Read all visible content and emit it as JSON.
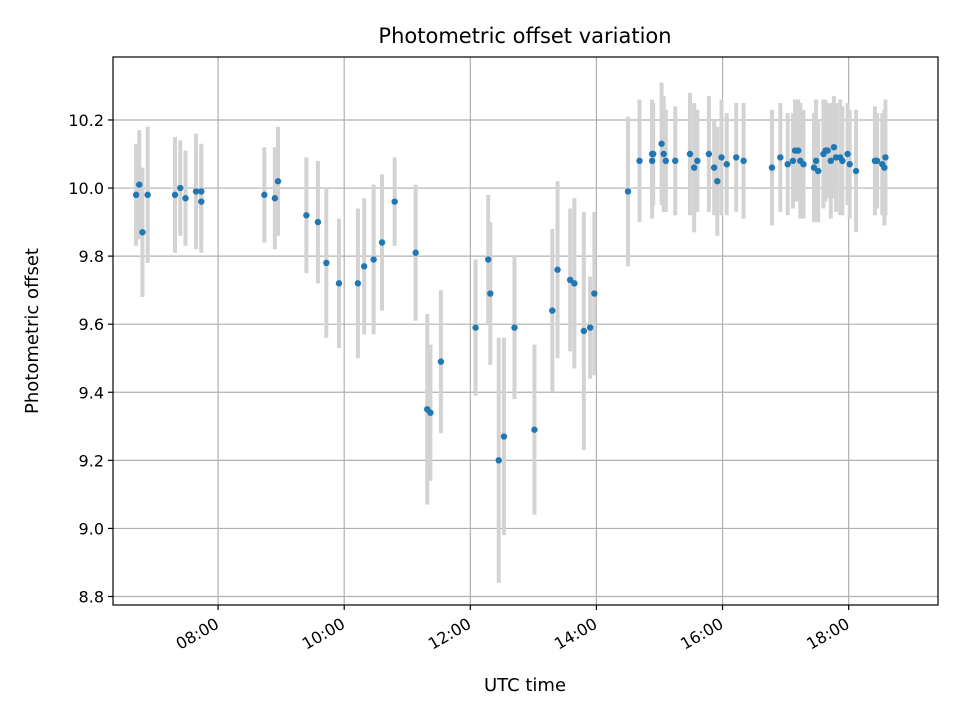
{
  "chart_data": {
    "type": "scatter",
    "title": "Photometric offset variation",
    "xlabel": "UTC time",
    "ylabel": "Photometric offset",
    "x_tick_labels": [
      "08:00",
      "10:00",
      "12:00",
      "14:00",
      "16:00",
      "18:00"
    ],
    "x_tick_hours": [
      8,
      10,
      12,
      14,
      16,
      18
    ],
    "y_ticks": [
      8.8,
      9.0,
      9.2,
      9.4,
      9.6,
      9.8,
      10.0,
      10.2
    ],
    "xlim": [
      "06:20",
      "19:25"
    ],
    "ylim": [
      8.775,
      10.385
    ],
    "grid": true,
    "marker_color": "#1f77b4",
    "errorbar_color": "#d3d3d3",
    "series": [
      {
        "x": [
          "06:42",
          "06:45",
          "06:48",
          "06:53",
          "07:19",
          "07:24",
          "07:29",
          "07:39",
          "07:44",
          "07:44",
          "08:44",
          "08:54",
          "08:57",
          "09:24",
          "09:35",
          "09:43",
          "09:55",
          "10:13",
          "10:19",
          "10:28",
          "10:36",
          "10:48",
          "11:08",
          "11:19",
          "11:22",
          "11:32",
          "12:05",
          "12:17",
          "12:19",
          "12:27",
          "12:32",
          "12:42",
          "13:01",
          "13:18",
          "13:23",
          "13:35",
          "13:39",
          "13:48",
          "13:54",
          "13:58",
          "14:30",
          "14:41",
          "14:53",
          "14:53",
          "14:54",
          "15:02",
          "15:04",
          "15:06",
          "15:15",
          "15:29",
          "15:33",
          "15:36",
          "15:47",
          "15:52",
          "15:55",
          "15:59",
          "16:04",
          "16:13",
          "16:20",
          "16:47",
          "16:55",
          "17:02",
          "17:07",
          "17:09",
          "17:12",
          "17:14",
          "17:17",
          "17:27",
          "17:29",
          "17:31",
          "17:36",
          "17:38",
          "17:40",
          "17:43",
          "17:46",
          "17:48",
          "17:52",
          "17:54",
          "17:59",
          "18:01",
          "18:07",
          "18:25",
          "18:27",
          "18:32",
          "18:34",
          "18:35"
        ],
        "y": [
          9.98,
          10.01,
          9.87,
          9.98,
          9.98,
          10.0,
          9.97,
          9.99,
          9.99,
          9.96,
          9.98,
          9.97,
          10.02,
          9.92,
          9.9,
          9.78,
          9.72,
          9.72,
          9.77,
          9.79,
          9.84,
          9.96,
          9.81,
          9.35,
          9.34,
          9.49,
          9.59,
          9.79,
          9.69,
          9.2,
          9.27,
          9.59,
          9.29,
          9.64,
          9.76,
          9.73,
          9.72,
          9.58,
          9.59,
          9.69,
          9.99,
          10.08,
          10.08,
          10.1,
          10.1,
          10.13,
          10.1,
          10.08,
          10.08,
          10.1,
          10.06,
          10.08,
          10.1,
          10.06,
          10.02,
          10.09,
          10.07,
          10.09,
          10.08,
          10.06,
          10.09,
          10.07,
          10.08,
          10.11,
          10.11,
          10.08,
          10.07,
          10.06,
          10.08,
          10.05,
          10.1,
          10.11,
          10.11,
          10.08,
          10.12,
          10.09,
          10.09,
          10.08,
          10.1,
          10.07,
          10.05,
          10.08,
          10.08,
          10.07,
          10.06,
          10.09
        ],
        "yerr": [
          0.15,
          0.16,
          0.19,
          0.2,
          0.17,
          0.14,
          0.14,
          0.17,
          0.14,
          0.15,
          0.14,
          0.15,
          0.16,
          0.17,
          0.18,
          0.22,
          0.19,
          0.22,
          0.2,
          0.22,
          0.2,
          0.13,
          0.2,
          0.28,
          0.2,
          0.21,
          0.2,
          0.19,
          0.21,
          0.36,
          0.29,
          0.21,
          0.25,
          0.24,
          0.26,
          0.21,
          0.25,
          0.35,
          0.15,
          0.24,
          0.22,
          0.18,
          0.17,
          0.16,
          0.15,
          0.18,
          0.17,
          0.15,
          0.16,
          0.18,
          0.19,
          0.15,
          0.17,
          0.14,
          0.16,
          0.17,
          0.15,
          0.16,
          0.17,
          0.17,
          0.16,
          0.15,
          0.14,
          0.15,
          0.15,
          0.17,
          0.16,
          0.16,
          0.18,
          0.15,
          0.16,
          0.15,
          0.14,
          0.17,
          0.15,
          0.16,
          0.17,
          0.16,
          0.15,
          0.16,
          0.18,
          0.16,
          0.14,
          0.15,
          0.17,
          0.17
        ]
      }
    ]
  }
}
